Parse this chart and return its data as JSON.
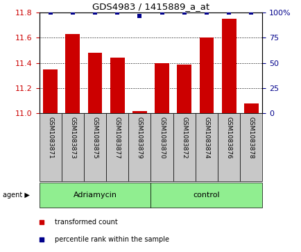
{
  "title": "GDS4983 / 1415889_a_at",
  "samples": [
    "GSM1083871",
    "GSM1083873",
    "GSM1083875",
    "GSM1083877",
    "GSM1083879",
    "GSM1083870",
    "GSM1083872",
    "GSM1083874",
    "GSM1083876",
    "GSM1083878"
  ],
  "red_values": [
    11.35,
    11.63,
    11.48,
    11.44,
    11.02,
    11.4,
    11.39,
    11.6,
    11.75,
    11.08
  ],
  "blue_values": [
    100,
    100,
    100,
    100,
    97,
    100,
    100,
    100,
    100,
    100
  ],
  "groups": [
    {
      "label": "Adriamycin",
      "start": 0,
      "end": 4,
      "color": "#90EE90"
    },
    {
      "label": "control",
      "start": 5,
      "end": 9,
      "color": "#90EE90"
    }
  ],
  "ylim_left": [
    11.0,
    11.8
  ],
  "ylim_right": [
    0,
    100
  ],
  "yticks_left": [
    11.0,
    11.2,
    11.4,
    11.6,
    11.8
  ],
  "yticks_right": [
    0,
    25,
    50,
    75,
    100
  ],
  "bar_color": "#CC0000",
  "dot_color": "#00008B",
  "label_bg": "#C8C8C8",
  "agent_label": "agent",
  "legend_items": [
    {
      "color": "#CC0000",
      "label": "transformed count"
    },
    {
      "color": "#00008B",
      "label": "percentile rank within the sample"
    }
  ]
}
